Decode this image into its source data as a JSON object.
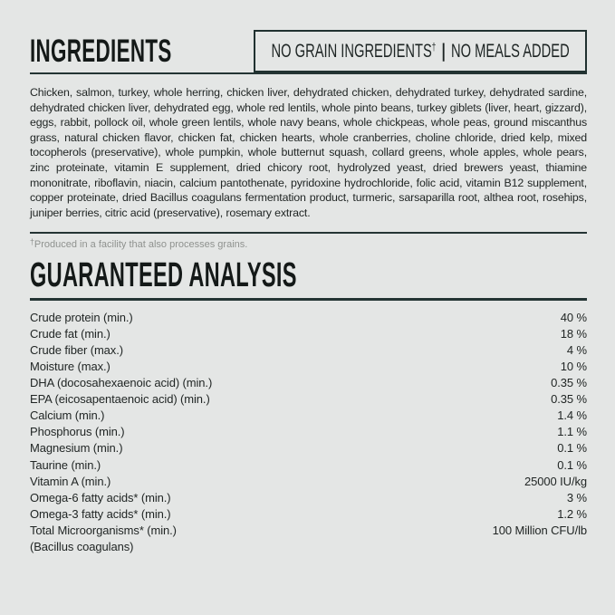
{
  "colors": {
    "background": "#e4e6e5",
    "text": "#212625",
    "heading": "#141918",
    "rule": "#243434",
    "muted": "#8f928f"
  },
  "ingredients_section": {
    "title": "INGREDIENTS",
    "badge": {
      "left_text": "NO GRAIN INGREDIENTS",
      "dagger": "†",
      "separator": "|",
      "right_text": "NO MEALS ADDED"
    },
    "body": "Chicken, salmon, turkey, whole herring, chicken liver, dehydrated chicken, dehydrated turkey, dehydrated sardine, dehydrated chicken liver, dehydrated egg, whole red lentils, whole pinto beans, turkey giblets (liver, heart, gizzard), eggs, rabbit, pollock oil, whole green lentils, whole navy beans, whole chickpeas, whole peas, ground miscanthus grass, natural chicken flavor, chicken fat, chicken hearts, whole cranberries, choline chloride, dried kelp, mixed tocopherols (preservative), whole pumpkin, whole butternut squash, collard greens, whole apples, whole pears, zinc proteinate, vitamin E supplement, dried chicory root, hydrolyzed yeast, dried brewers yeast, thiamine mononitrate, riboflavin, niacin, calcium pantothenate, pyridoxine hydrochloride, folic acid, vitamin B12 supplement, copper proteinate, dried Bacillus coagulans fermentation product, turmeric, sarsaparilla root, althea root, rosehips, juniper berries, citric acid (preservative), rosemary extract.",
    "footnote_dagger": "†",
    "footnote_text": "Produced in a facility that also processes grains."
  },
  "guaranteed_analysis": {
    "title": "GUARANTEED ANALYSIS",
    "rows": [
      {
        "label": "Crude protein (min.)",
        "value": "40 %"
      },
      {
        "label": "Crude fat (min.)",
        "value": "18 %"
      },
      {
        "label": "Crude fiber (max.)",
        "value": "4 %"
      },
      {
        "label": "Moisture (max.)",
        "value": "10 %"
      },
      {
        "label": "DHA (docosahexaenoic acid) (min.)",
        "value": "0.35 %"
      },
      {
        "label": "EPA (eicosapentaenoic acid) (min.)",
        "value": "0.35 %"
      },
      {
        "label": "Calcium (min.)",
        "value": "1.4 %"
      },
      {
        "label": "Phosphorus (min.)",
        "value": "1.1 %"
      },
      {
        "label": "Magnesium (min.)",
        "value": "0.1 %"
      },
      {
        "label": "Taurine (min.)",
        "value": "0.1 %"
      },
      {
        "label": "Vitamin A (min.)",
        "value": "25000 IU/kg"
      },
      {
        "label": "Omega-6 fatty acids* (min.)",
        "value": "3 %"
      },
      {
        "label": "Omega-3 fatty acids* (min.)",
        "value": "1.2 %"
      },
      {
        "label": "Total Microorganisms* (min.)",
        "value": "100 Million CFU/lb"
      },
      {
        "label": "(Bacillus coagulans)",
        "value": ""
      }
    ]
  }
}
